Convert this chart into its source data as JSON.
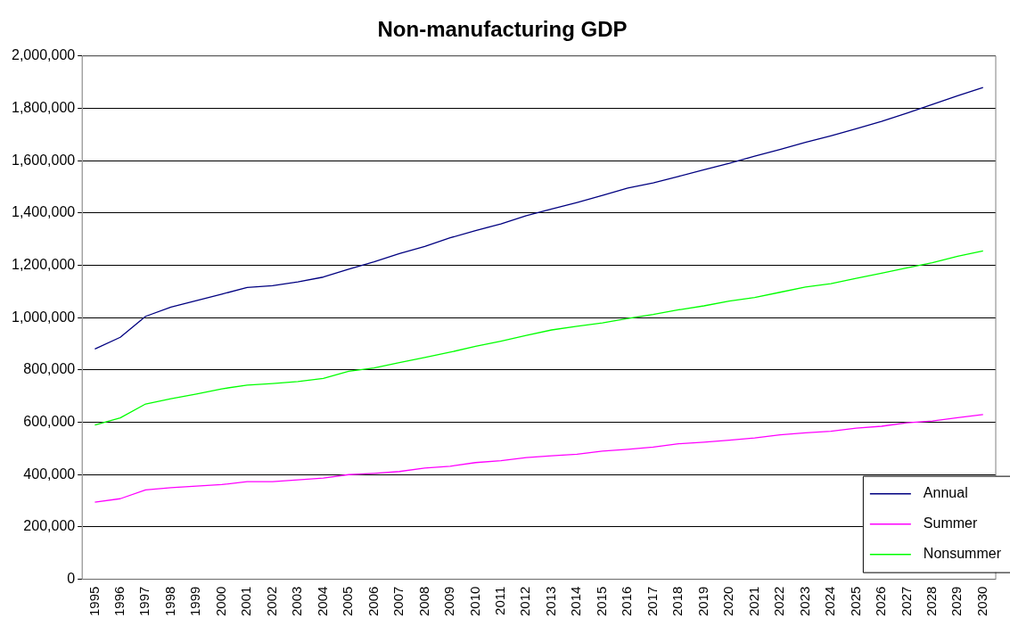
{
  "chart_data": {
    "type": "line",
    "title": "Non-manufacturing GDP",
    "categories": [
      "1995",
      "1996",
      "1997",
      "1998",
      "1999",
      "2000",
      "2001",
      "2002",
      "2003",
      "2004",
      "2005",
      "2006",
      "2007",
      "2008",
      "2009",
      "2010",
      "2011",
      "2012",
      "2013",
      "2014",
      "2015",
      "2016",
      "2017",
      "2018",
      "2019",
      "2020",
      "2021",
      "2022",
      "2023",
      "2024",
      "2025",
      "2026",
      "2027",
      "2028",
      "2029",
      "2030"
    ],
    "series": [
      {
        "name": "Annual",
        "color": "#000080",
        "values": [
          880000,
          925000,
          1005000,
          1040000,
          1065000,
          1090000,
          1115000,
          1122000,
          1137000,
          1155000,
          1185000,
          1213000,
          1245000,
          1272000,
          1305000,
          1333000,
          1358000,
          1390000,
          1415000,
          1440000,
          1467000,
          1495000,
          1515000,
          1540000,
          1565000,
          1590000,
          1617000,
          1643000,
          1670000,
          1695000,
          1722000,
          1750000,
          1782000,
          1815000,
          1848000,
          1880000
        ]
      },
      {
        "name": "Summer",
        "color": "#ff00ff",
        "values": [
          295000,
          308000,
          342000,
          350000,
          356000,
          362000,
          373000,
          373000,
          380000,
          387000,
          400000,
          405000,
          412000,
          425000,
          432000,
          446000,
          453000,
          465000,
          472000,
          478000,
          490000,
          497000,
          505000,
          518000,
          524000,
          532000,
          540000,
          552000,
          560000,
          566000,
          578000,
          585000,
          598000,
          605000,
          618000,
          630000
        ]
      },
      {
        "name": "Nonsummer",
        "color": "#00ff00",
        "values": [
          590000,
          617000,
          670000,
          690000,
          708000,
          728000,
          742000,
          748000,
          756000,
          768000,
          795000,
          808000,
          828000,
          848000,
          868000,
          890000,
          910000,
          932000,
          953000,
          967000,
          980000,
          997000,
          1012000,
          1030000,
          1045000,
          1063000,
          1077000,
          1097000,
          1117000,
          1130000,
          1150000,
          1170000,
          1190000,
          1210000,
          1235000,
          1255000
        ]
      }
    ],
    "ylim": [
      0,
      2000000
    ],
    "yticks": [
      {
        "value": 0,
        "label": "0"
      },
      {
        "value": 200000,
        "label": "200,000"
      },
      {
        "value": 400000,
        "label": "400,000"
      },
      {
        "value": 600000,
        "label": "600,000"
      },
      {
        "value": 800000,
        "label": "800,000"
      },
      {
        "value": 1000000,
        "label": "1,000,000"
      },
      {
        "value": 1200000,
        "label": "1,200,000"
      },
      {
        "value": 1400000,
        "label": "1,400,000"
      },
      {
        "value": 1600000,
        "label": "1,600,000"
      },
      {
        "value": 1800000,
        "label": "1,800,000"
      },
      {
        "value": 2000000,
        "label": "2,000,000"
      }
    ],
    "grid": "y",
    "legend": "bottom right",
    "marker": "none",
    "line_style": "solid"
  }
}
